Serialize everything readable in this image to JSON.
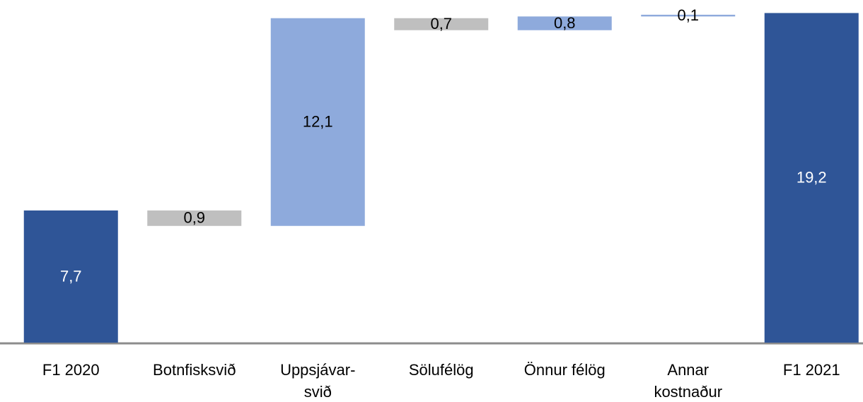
{
  "chart_data": {
    "type": "waterfall",
    "categories": [
      "F1 2020",
      "Botnfisksvið",
      "Uppsjávar-\nsvið",
      "Sölufélög",
      "Önnur félög",
      "Annar\nkostnaður",
      "F1 2021"
    ],
    "values": [
      7.7,
      -0.9,
      12.1,
      -0.7,
      0.8,
      0.1,
      19.2
    ],
    "value_labels": [
      "7,7",
      "0,9",
      "12,1",
      "0,7",
      "0,8",
      "0,1",
      "19,2"
    ],
    "colors": [
      "#2f5597",
      "#bfbfbf",
      "#8eaadc",
      "#bfbfbf",
      "#8eaadc",
      "#8eaadc",
      "#2f5597"
    ],
    "ylim": [
      0,
      20
    ]
  }
}
